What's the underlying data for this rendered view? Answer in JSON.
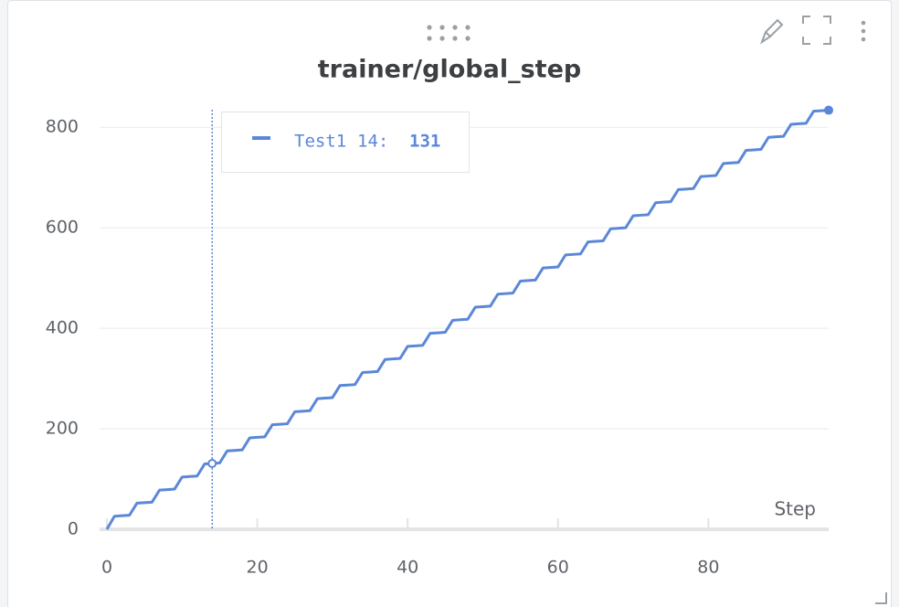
{
  "chart_data": {
    "type": "line",
    "title": "trainer/global_step",
    "xlabel": "Step",
    "x": [
      0,
      1,
      2,
      3,
      4,
      5,
      6,
      7,
      8,
      9,
      10,
      11,
      12,
      13,
      14,
      15,
      16,
      17,
      18,
      19,
      20,
      21,
      22,
      23,
      24,
      25,
      26,
      27,
      28,
      29,
      30,
      31,
      32,
      33,
      34,
      35,
      36,
      37,
      38,
      39,
      40,
      41,
      42,
      43,
      44,
      45,
      46,
      47,
      48,
      49,
      50,
      51,
      52,
      53,
      54,
      55,
      56,
      57,
      58,
      59,
      60,
      61,
      62,
      63,
      64,
      65,
      66,
      67,
      68,
      69,
      70,
      71,
      72,
      73,
      74,
      75,
      76,
      77,
      78,
      79,
      80,
      81,
      82,
      83,
      84,
      85,
      86,
      87,
      88,
      89,
      90,
      91,
      92,
      93,
      94,
      95,
      96
    ],
    "series": [
      {
        "name": "Test1",
        "color": "#5b87d9",
        "values": [
          0,
          26,
          27,
          28,
          52,
          53,
          54,
          78,
          79,
          80,
          104,
          105,
          106,
          130,
          131,
          132,
          156,
          157,
          158,
          182,
          183,
          184,
          208,
          209,
          210,
          234,
          235,
          236,
          260,
          261,
          262,
          286,
          287,
          288,
          312,
          313,
          314,
          338,
          339,
          340,
          364,
          365,
          366,
          390,
          391,
          392,
          416,
          417,
          418,
          442,
          443,
          444,
          468,
          469,
          470,
          494,
          495,
          496,
          520,
          521,
          522,
          546,
          547,
          548,
          572,
          573,
          574,
          598,
          599,
          600,
          624,
          625,
          626,
          650,
          651,
          652,
          676,
          677,
          678,
          702,
          703,
          704,
          728,
          729,
          730,
          754,
          755,
          756,
          780,
          781,
          782,
          806,
          807,
          808,
          832,
          833,
          834
        ]
      }
    ],
    "xlim": [
      0,
      96
    ],
    "ylim": [
      0,
      835
    ],
    "xticks": [
      0,
      20,
      40,
      60,
      80
    ],
    "yticks": [
      0,
      200,
      400,
      600,
      800
    ],
    "grid": true,
    "tooltip": {
      "x": 14,
      "x_label": "14:"
    }
  }
}
